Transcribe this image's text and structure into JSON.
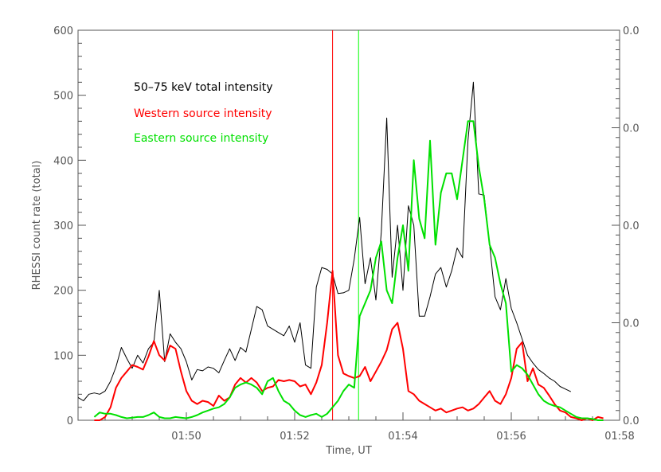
{
  "chart_data": {
    "type": "line",
    "title": "",
    "xlabel": "Time, UT",
    "ylabel": "RHESSI count rate (total)",
    "x_range_minutes": [
      48,
      58
    ],
    "ylim": [
      0,
      600
    ],
    "x_ticks": [
      {
        "t": 50,
        "label": "01:50"
      },
      {
        "t": 52,
        "label": "01:52"
      },
      {
        "t": 54,
        "label": "01:54"
      },
      {
        "t": 56,
        "label": "01:56"
      },
      {
        "t": 58,
        "label": "01:58"
      }
    ],
    "y_ticks": [
      0,
      100,
      200,
      300,
      400,
      500,
      600
    ],
    "right_axis_labels": [
      "0.0",
      "0.0",
      "0.0",
      "0.0",
      "0.0"
    ],
    "grid": false,
    "legend_position": "top-left",
    "vertical_markers": [
      {
        "t": 52.7,
        "color": "#ff0000"
      },
      {
        "t": 53.18,
        "color": "#00ff00"
      }
    ],
    "series": [
      {
        "name": "50–75 keV total intensity",
        "color": "#000000",
        "x": [
          48.0,
          48.1,
          48.2,
          48.3,
          48.4,
          48.5,
          48.6,
          48.7,
          48.8,
          48.9,
          49.0,
          49.1,
          49.2,
          49.3,
          49.4,
          49.5,
          49.6,
          49.7,
          49.8,
          49.9,
          50.0,
          50.1,
          50.2,
          50.3,
          50.4,
          50.5,
          50.6,
          50.7,
          50.8,
          50.9,
          51.0,
          51.1,
          51.2,
          51.3,
          51.4,
          51.5,
          51.6,
          51.7,
          51.8,
          51.9,
          52.0,
          52.1,
          52.2,
          52.3,
          52.4,
          52.5,
          52.6,
          52.7,
          52.8,
          52.9,
          53.0,
          53.1,
          53.2,
          53.3,
          53.4,
          53.5,
          53.6,
          53.7,
          53.8,
          53.9,
          54.0,
          54.1,
          54.2,
          54.3,
          54.4,
          54.5,
          54.6,
          54.7,
          54.8,
          54.9,
          55.0,
          55.1,
          55.2,
          55.3,
          55.4,
          55.5,
          55.6,
          55.7,
          55.8,
          55.9,
          56.0,
          56.1,
          56.2,
          56.3,
          56.4,
          56.5,
          56.6,
          56.7,
          56.8,
          56.9,
          57.0,
          57.1
        ],
        "values": [
          35,
          30,
          40,
          42,
          40,
          45,
          60,
          82,
          112,
          95,
          80,
          100,
          88,
          110,
          120,
          200,
          90,
          133,
          120,
          110,
          90,
          62,
          78,
          76,
          82,
          80,
          73,
          92,
          110,
          92,
          112,
          105,
          140,
          175,
          170,
          145,
          140,
          135,
          130,
          145,
          120,
          150,
          85,
          80,
          205,
          235,
          232,
          225,
          195,
          196,
          200,
          248,
          312,
          210,
          250,
          185,
          290,
          465,
          220,
          300,
          200,
          330,
          300,
          160,
          160,
          190,
          225,
          235,
          205,
          230,
          265,
          250,
          430,
          520,
          348,
          346,
          270,
          190,
          170,
          218,
          172,
          150,
          125,
          100,
          88,
          78,
          72,
          65,
          60,
          52,
          48,
          44
        ],
        "note": ""
      },
      {
        "name": "Western source intensity",
        "color": "#ff0000",
        "x": [
          48.3,
          48.4,
          48.5,
          48.6,
          48.7,
          48.8,
          48.9,
          49.0,
          49.1,
          49.2,
          49.3,
          49.4,
          49.5,
          49.6,
          49.7,
          49.8,
          49.9,
          50.0,
          50.1,
          50.2,
          50.3,
          50.4,
          50.5,
          50.6,
          50.7,
          50.8,
          50.9,
          51.0,
          51.1,
          51.2,
          51.3,
          51.4,
          51.5,
          51.6,
          51.7,
          51.8,
          51.9,
          52.0,
          52.1,
          52.2,
          52.3,
          52.4,
          52.5,
          52.6,
          52.7,
          52.8,
          52.9,
          53.0,
          53.1,
          53.2,
          53.3,
          53.4,
          53.5,
          53.6,
          53.7,
          53.8,
          53.9,
          54.0,
          54.1,
          54.2,
          54.3,
          54.4,
          54.5,
          54.6,
          54.7,
          54.8,
          54.9,
          55.0,
          55.1,
          55.2,
          55.3,
          55.4,
          55.5,
          55.6,
          55.7,
          55.8,
          55.9,
          56.0,
          56.1,
          56.2,
          56.3,
          56.4,
          56.5,
          56.6,
          56.7,
          56.8,
          56.9,
          57.0,
          57.1,
          57.2,
          57.3,
          57.4,
          57.5,
          57.6,
          57.7
        ],
        "values": [
          0,
          0,
          5,
          20,
          50,
          65,
          75,
          85,
          82,
          78,
          98,
          122,
          100,
          92,
          115,
          110,
          75,
          45,
          30,
          25,
          30,
          28,
          22,
          38,
          30,
          35,
          55,
          65,
          58,
          65,
          58,
          45,
          50,
          52,
          62,
          60,
          62,
          60,
          52,
          55,
          40,
          58,
          85,
          150,
          230,
          100,
          72,
          68,
          65,
          68,
          82,
          60,
          75,
          90,
          108,
          140,
          150,
          110,
          45,
          40,
          30,
          25,
          20,
          15,
          18,
          12,
          15,
          18,
          20,
          15,
          18,
          25,
          35,
          45,
          30,
          25,
          40,
          65,
          110,
          120,
          60,
          80,
          55,
          50,
          38,
          25,
          15,
          12,
          5,
          3,
          0,
          3,
          0,
          5,
          3
        ]
      },
      {
        "name": "Eastern source intensity",
        "color": "#00e000",
        "x": [
          48.3,
          48.4,
          48.5,
          48.6,
          48.7,
          48.8,
          48.9,
          49.0,
          49.1,
          49.2,
          49.3,
          49.4,
          49.5,
          49.6,
          49.7,
          49.8,
          49.9,
          50.0,
          50.1,
          50.2,
          50.3,
          50.4,
          50.5,
          50.6,
          50.7,
          50.8,
          50.9,
          51.0,
          51.1,
          51.2,
          51.3,
          51.4,
          51.5,
          51.6,
          51.7,
          51.8,
          51.9,
          52.0,
          52.1,
          52.2,
          52.3,
          52.4,
          52.5,
          52.6,
          52.7,
          52.8,
          52.9,
          53.0,
          53.1,
          53.2,
          53.3,
          53.4,
          53.5,
          53.6,
          53.7,
          53.8,
          53.9,
          54.0,
          54.1,
          54.2,
          54.3,
          54.4,
          54.5,
          54.6,
          54.7,
          54.8,
          54.9,
          55.0,
          55.1,
          55.2,
          55.3,
          55.4,
          55.5,
          55.6,
          55.7,
          55.8,
          55.9,
          56.0,
          56.1,
          56.2,
          56.3,
          56.4,
          56.5,
          56.6,
          56.7,
          56.8,
          56.9,
          57.0,
          57.1,
          57.2,
          57.3,
          57.4,
          57.5,
          57.6,
          57.7
        ],
        "values": [
          5,
          12,
          10,
          10,
          8,
          5,
          3,
          4,
          5,
          5,
          8,
          12,
          5,
          3,
          3,
          5,
          4,
          3,
          5,
          8,
          12,
          15,
          18,
          20,
          25,
          35,
          50,
          55,
          58,
          55,
          50,
          40,
          60,
          65,
          45,
          30,
          25,
          15,
          8,
          5,
          8,
          10,
          5,
          10,
          20,
          30,
          45,
          55,
          50,
          160,
          180,
          200,
          250,
          275,
          200,
          180,
          250,
          300,
          230,
          400,
          310,
          280,
          430,
          270,
          350,
          380,
          380,
          340,
          400,
          460,
          460,
          390,
          340,
          270,
          250,
          210,
          180,
          75,
          85,
          80,
          70,
          55,
          40,
          30,
          25,
          22,
          20,
          15,
          10,
          5,
          3,
          3,
          2,
          0,
          0
        ]
      }
    ]
  }
}
